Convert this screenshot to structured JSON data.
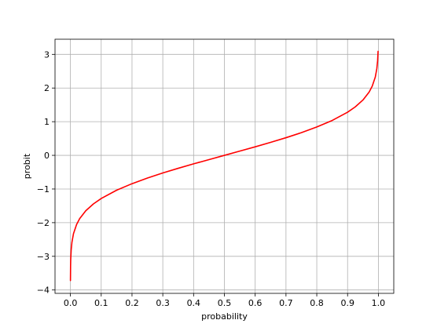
{
  "chart_data": {
    "type": "line",
    "title": "",
    "xlabel": "probability",
    "ylabel": "probit",
    "xlim": [
      -0.05,
      1.05
    ],
    "ylim": [
      -4.1,
      3.45
    ],
    "xticks": [
      0.0,
      0.1,
      0.2,
      0.3,
      0.4,
      0.5,
      0.6,
      0.7,
      0.8,
      0.9,
      1.0
    ],
    "xtick_labels": [
      "0.0",
      "0.1",
      "0.2",
      "0.3",
      "0.4",
      "0.5",
      "0.6",
      "0.7",
      "0.8",
      "0.9",
      "1.0"
    ],
    "yticks": [
      -4,
      -3,
      -2,
      -1,
      0,
      1,
      2,
      3
    ],
    "ytick_labels": [
      "−4",
      "−3",
      "−2",
      "−1",
      "0",
      "1",
      "2",
      "3"
    ],
    "grid": true,
    "series": [
      {
        "color": "#ff0000",
        "x": [
          0.0001,
          0.0005,
          0.001,
          0.0025,
          0.005,
          0.01,
          0.02,
          0.03,
          0.05,
          0.075,
          0.1,
          0.15,
          0.2,
          0.25,
          0.3,
          0.35,
          0.4,
          0.45,
          0.5,
          0.55,
          0.6,
          0.65,
          0.7,
          0.75,
          0.8,
          0.85,
          0.9,
          0.925,
          0.95,
          0.97,
          0.98,
          0.99,
          0.995,
          0.9975,
          0.999
        ],
        "y": [
          -3.719,
          -3.291,
          -3.09,
          -2.807,
          -2.576,
          -2.326,
          -2.054,
          -1.881,
          -1.645,
          -1.44,
          -1.282,
          -1.036,
          -0.842,
          -0.674,
          -0.524,
          -0.385,
          -0.253,
          -0.126,
          0.0,
          0.126,
          0.253,
          0.385,
          0.524,
          0.674,
          0.842,
          1.036,
          1.282,
          1.44,
          1.645,
          1.881,
          2.054,
          2.326,
          2.576,
          2.807,
          3.09
        ]
      }
    ]
  }
}
